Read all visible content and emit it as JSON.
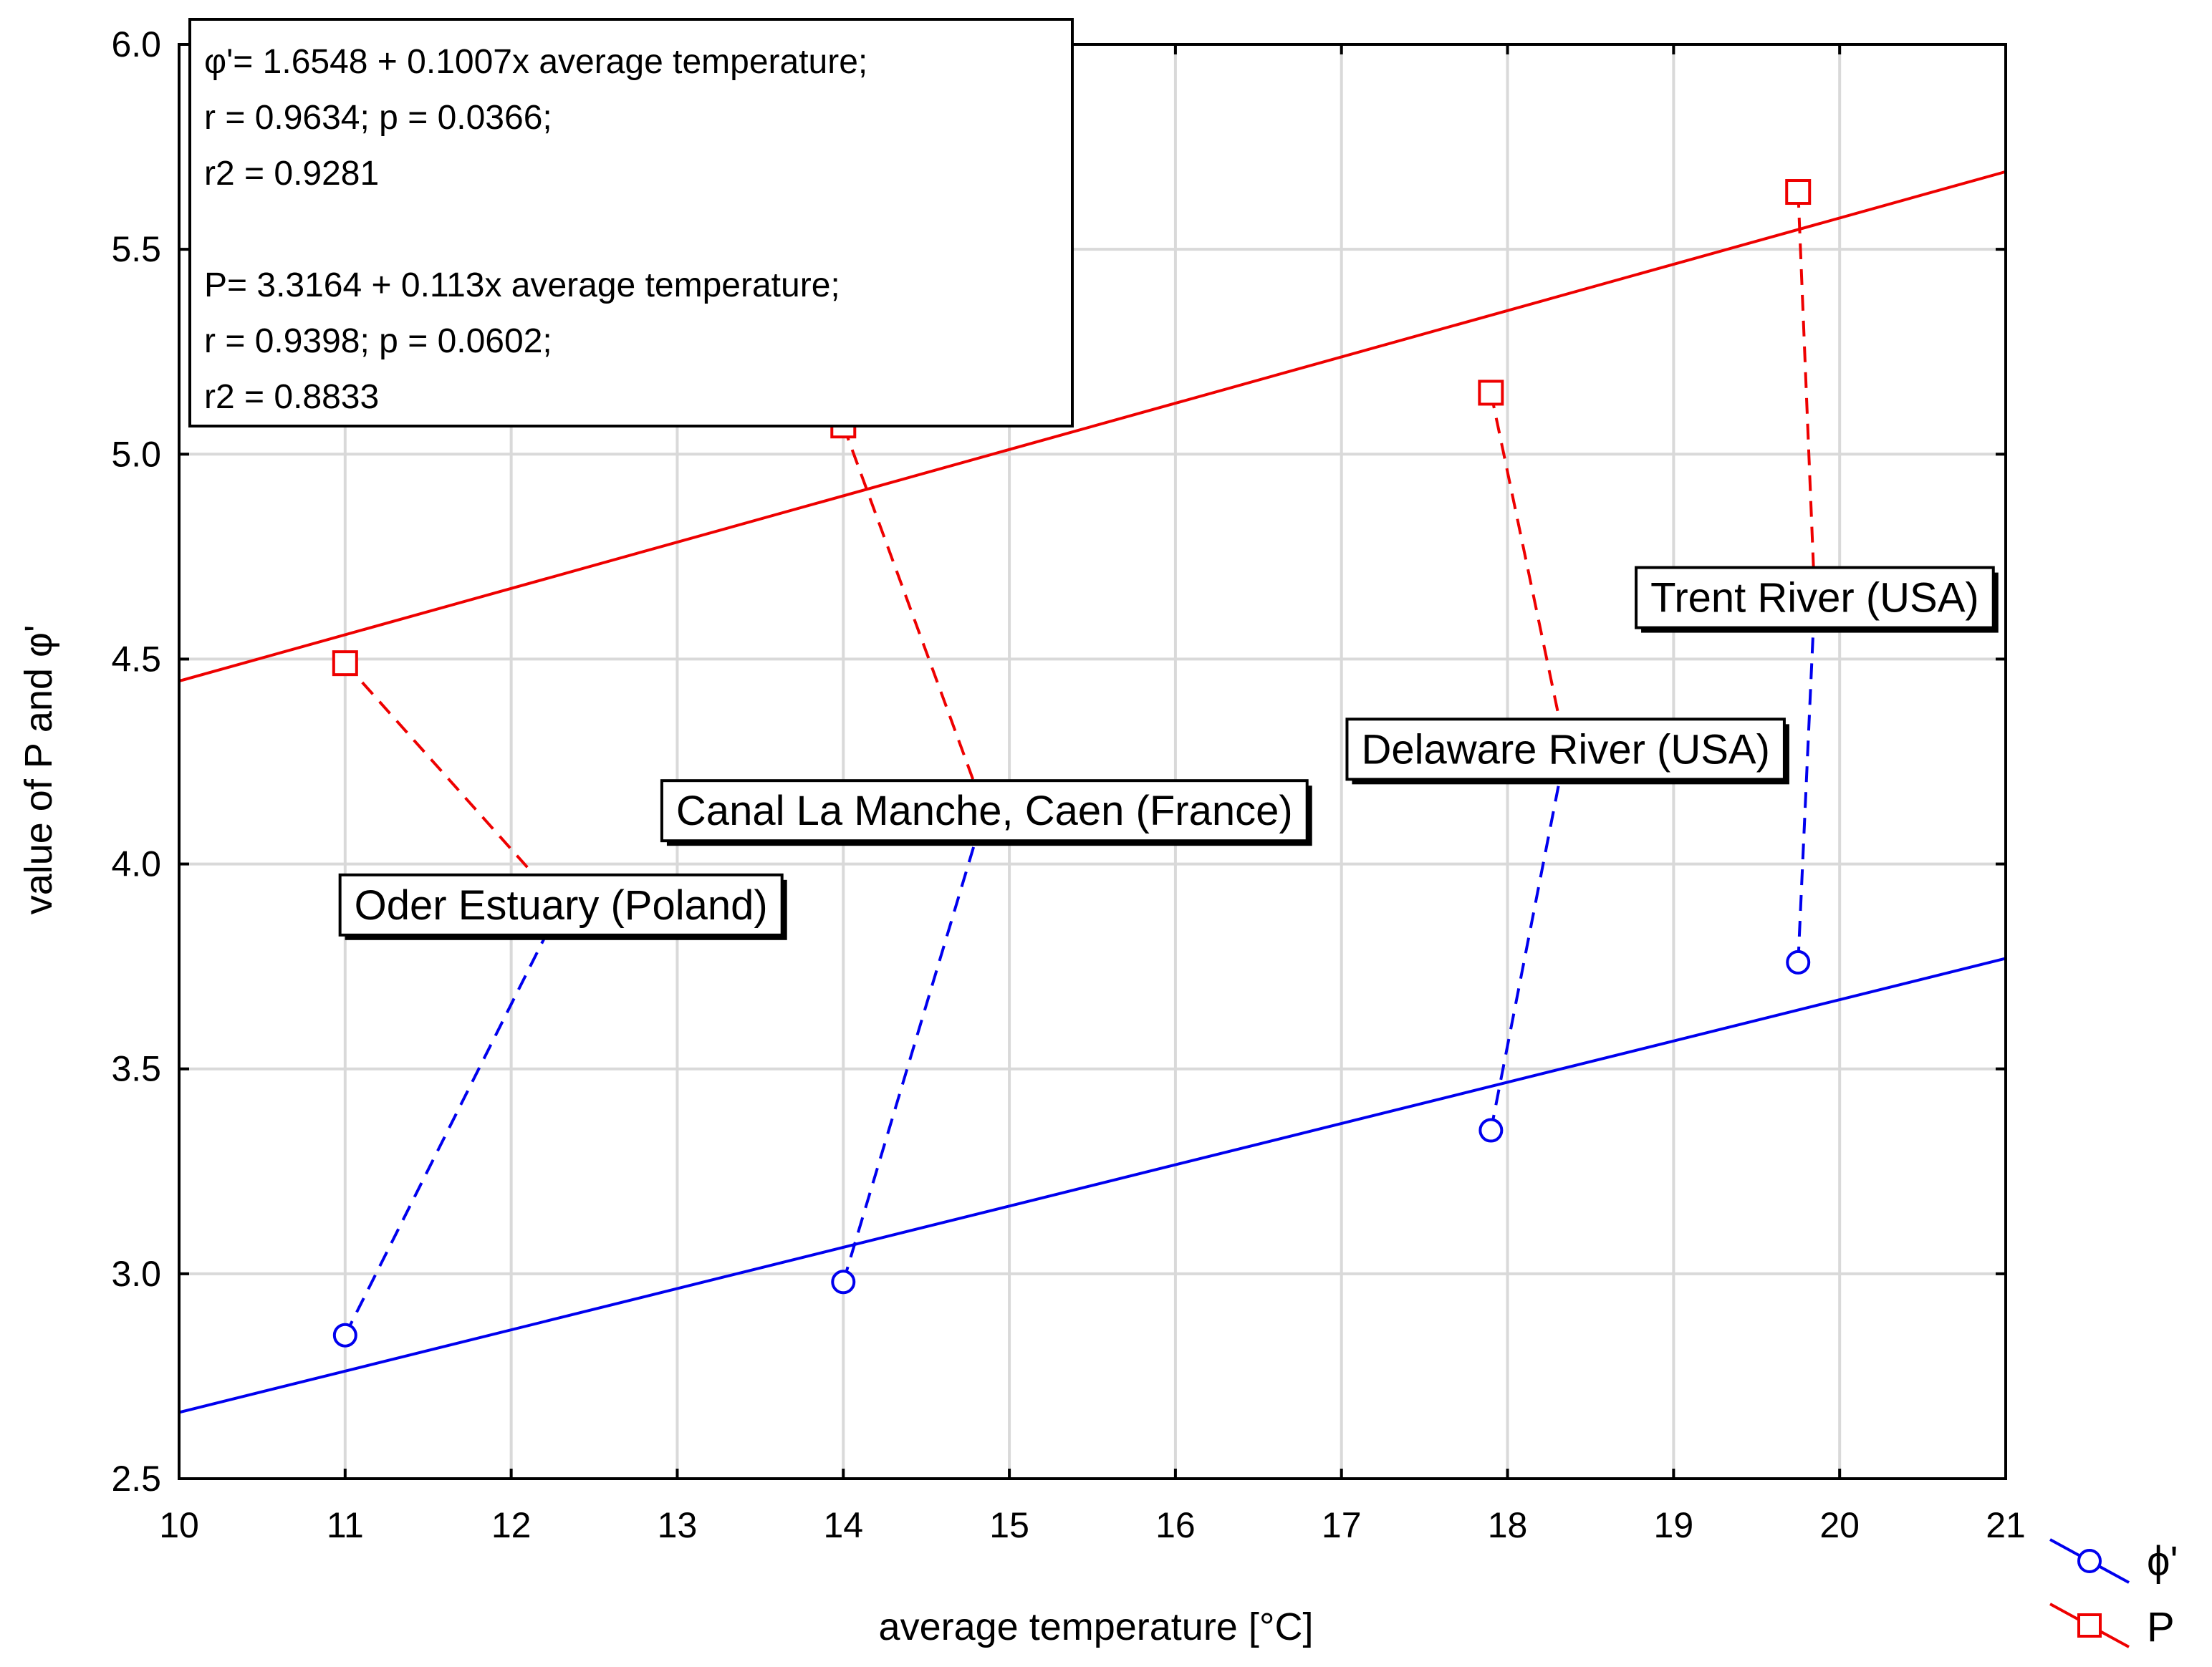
{
  "chart_data": {
    "type": "scatter",
    "title": "",
    "xlabel": "average temperature [°C]",
    "ylabel": "value of P and φ'",
    "xlim": [
      10,
      21
    ],
    "ylim": [
      2.5,
      6.0
    ],
    "x_ticks": [
      10,
      11,
      12,
      13,
      14,
      15,
      16,
      17,
      18,
      19,
      20,
      21
    ],
    "y_ticks": [
      2.5,
      3.0,
      3.5,
      4.0,
      4.5,
      5.0,
      5.5,
      6.0
    ],
    "x_tick_labels": [
      "10",
      "11",
      "12",
      "13",
      "14",
      "15",
      "16",
      "17",
      "18",
      "19",
      "20",
      "21"
    ],
    "y_tick_labels": [
      "2.5",
      "3.0",
      "3.5",
      "4.0",
      "4.5",
      "5.0",
      "5.5",
      "6.0"
    ],
    "grid": true,
    "series": [
      {
        "name": "φ'",
        "legend_label": "ϕ'",
        "color": "#0000ee",
        "marker": "circle",
        "x": [
          11.0,
          14.0,
          17.9,
          19.75
        ],
        "y": [
          2.85,
          2.98,
          3.35,
          3.76
        ],
        "fit": {
          "intercept": 1.6548,
          "slope": 0.1007
        }
      },
      {
        "name": "P",
        "legend_label": "P",
        "color": "#ee0000",
        "marker": "square",
        "x": [
          11.0,
          14.0,
          17.9,
          19.75
        ],
        "y": [
          4.49,
          5.07,
          5.15,
          5.64
        ],
        "fit": {
          "intercept": 3.3164,
          "slope": 0.113
        }
      }
    ],
    "equations": [
      "φ'= 1.6548 + 0.1007x average temperature;",
      "r = 0.9634; p = 0.0366;",
      "r2 = 0.9281",
      "",
      "P= 3.3164 + 0.113x average temperature;",
      "r = 0.9398; p = 0.0602;",
      "r2 = 0.8833"
    ],
    "annotations": [
      {
        "text": "Oder Estuary (Poland)",
        "point_index": 0,
        "label_x": 12.3,
        "label_y": 3.9
      },
      {
        "text": "Canal La Manche, Caen (France)",
        "point_index": 1,
        "label_x": 14.85,
        "label_y": 4.13
      },
      {
        "text": "Delaware River (USA)",
        "point_index": 2,
        "label_x": 18.35,
        "label_y": 4.28
      },
      {
        "text": "Trent River (USA)",
        "point_index": 3,
        "label_x": 19.85,
        "label_y": 4.65
      }
    ],
    "legend_position": "bottom-right outside"
  }
}
